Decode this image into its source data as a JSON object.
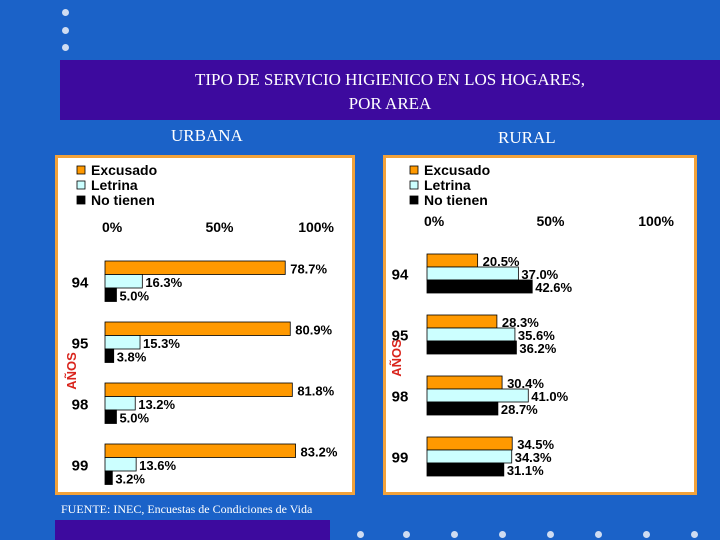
{
  "slide": {
    "title_line1": "TIPO DE SERVICIO HIGIENICO EN LOS HOGARES,",
    "title_line2": "POR AREA",
    "source": "FUENTE: INEC, Encuestas de Condiciones de Vida"
  },
  "colors": {
    "background": "#1b62c8",
    "title_bar": "#3d0a9e",
    "panel_border": "#f3a23a",
    "excusado": "#ff9900",
    "letrina": "#ccffff",
    "no_tienen": "#000000",
    "axis_label": "#d9241c"
  },
  "chart_data": [
    {
      "type": "bar",
      "title": "URBANA",
      "ylabel": "AÑOS",
      "xlim": [
        0,
        100
      ],
      "xticks": [
        "0%",
        "50%",
        "100%"
      ],
      "categories": [
        "94",
        "95",
        "98",
        "99"
      ],
      "series": [
        {
          "name": "Excusado",
          "values": [
            78.7,
            80.9,
            81.8,
            83.2
          ],
          "labels": [
            "78.7%",
            "80.9%",
            "81.8%",
            "83.2%"
          ]
        },
        {
          "name": "Letrina",
          "values": [
            16.3,
            15.3,
            13.2,
            13.6
          ],
          "labels": [
            "16.3%",
            "15.3%",
            "13.2%",
            "13.6%"
          ]
        },
        {
          "name": "No tienen",
          "values": [
            5.0,
            3.8,
            5.0,
            3.2
          ],
          "labels": [
            "5.0%",
            "3.8%",
            "5.0%",
            "3.2%"
          ]
        }
      ]
    },
    {
      "type": "bar",
      "title": "RURAL",
      "ylabel": "AÑOS",
      "xlim": [
        0,
        100
      ],
      "xticks": [
        "0%",
        "50%",
        "100%"
      ],
      "categories": [
        "94",
        "95",
        "98",
        "99"
      ],
      "series": [
        {
          "name": "Excusado",
          "values": [
            20.5,
            28.3,
            30.4,
            34.5
          ],
          "labels": [
            "20.5%",
            "28.3%",
            "30.4%",
            "34.5%"
          ]
        },
        {
          "name": "Letrina",
          "values": [
            37.0,
            35.6,
            41.0,
            34.3
          ],
          "labels": [
            "37.0%",
            "35.6%",
            "41.0%",
            "34.3%"
          ]
        },
        {
          "name": "No tienen",
          "values": [
            42.6,
            36.2,
            28.7,
            31.1
          ],
          "labels": [
            "42.6%",
            "36.2%",
            "28.7%",
            "31.1%"
          ]
        }
      ]
    }
  ]
}
